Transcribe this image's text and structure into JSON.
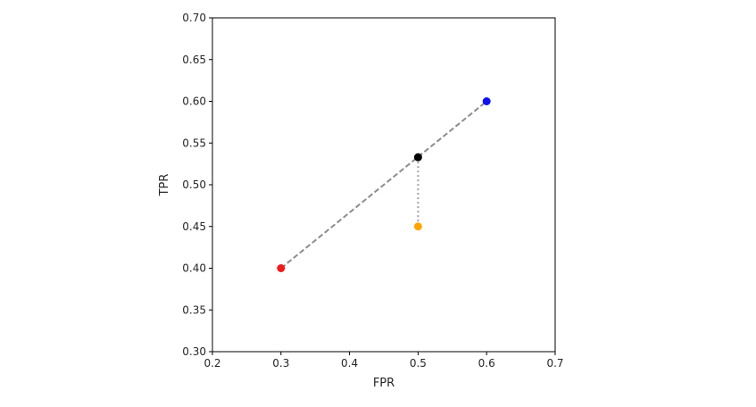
{
  "chart_data": {
    "type": "scatter",
    "xlabel": "FPR",
    "ylabel": "TPR",
    "xlim": [
      0.2,
      0.7
    ],
    "ylim": [
      0.3,
      0.7
    ],
    "xticks": [
      "0.2",
      "0.3",
      "0.4",
      "0.5",
      "0.6",
      "0.7"
    ],
    "yticks": [
      "0.70",
      "0.65",
      "0.60",
      "0.55",
      "0.50",
      "0.45",
      "0.40",
      "0.35",
      "0.30"
    ],
    "grid": false,
    "points": [
      {
        "x": 0.3,
        "y": 0.4,
        "color": "#ee1c1c"
      },
      {
        "x": 0.6,
        "y": 0.6,
        "color": "#1010f0"
      },
      {
        "x": 0.5,
        "y": 0.533,
        "color": "#000000"
      },
      {
        "x": 0.5,
        "y": 0.45,
        "color": "#ffa500"
      }
    ],
    "lines": [
      {
        "style": "dashed",
        "color": "#8c8c8c",
        "points": [
          {
            "x": 0.3,
            "y": 0.4
          },
          {
            "x": 0.6,
            "y": 0.6
          }
        ]
      },
      {
        "style": "dotted",
        "color": "#a0a0a0",
        "points": [
          {
            "x": 0.5,
            "y": 0.533
          },
          {
            "x": 0.5,
            "y": 0.45
          }
        ]
      }
    ]
  }
}
